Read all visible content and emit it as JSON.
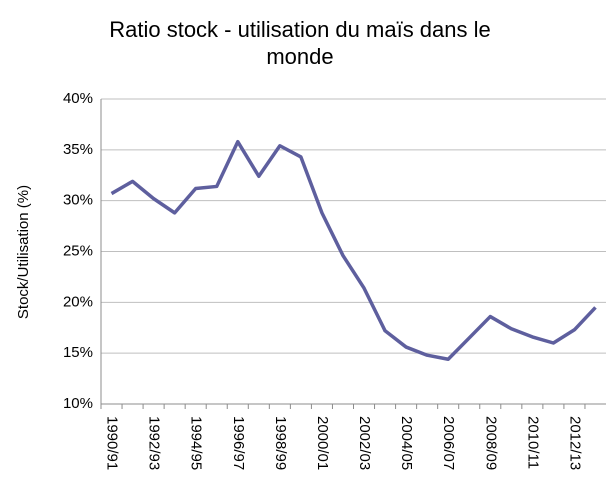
{
  "chart_data": {
    "type": "line",
    "title": "Ratio stock - utilisation du maïs dans le monde",
    "y_label": "Stock/Utilisation (%)",
    "categories": [
      "1990/91",
      null,
      "1992/93",
      null,
      "1994/95",
      null,
      "1996/97",
      null,
      "1998/99",
      null,
      "2000/01",
      null,
      "2002/03",
      null,
      "2004/05",
      null,
      "2006/07",
      null,
      "2008/09",
      null,
      "2010/11",
      null,
      "2012/13",
      null
    ],
    "series": [
      {
        "name": "Stock/Utilisation",
        "color": "#5e5f9e",
        "values": [
          30.7,
          31.9,
          30.2,
          28.8,
          31.2,
          31.4,
          35.8,
          32.4,
          35.4,
          34.3,
          28.8,
          24.6,
          21.4,
          17.2,
          15.6,
          14.8,
          14.4,
          16.5,
          18.6,
          17.4,
          16.6,
          16.0,
          17.3,
          19.5
        ]
      }
    ],
    "ylim": [
      10,
      40
    ],
    "yticks": [
      {
        "value": 10,
        "label": "10%"
      },
      {
        "value": 15,
        "label": "15%"
      },
      {
        "value": 20,
        "label": "20%"
      },
      {
        "value": 25,
        "label": "25%"
      },
      {
        "value": 30,
        "label": "30%"
      },
      {
        "value": 35,
        "label": "35%"
      },
      {
        "value": 40,
        "label": "40%"
      }
    ],
    "grid": true
  }
}
